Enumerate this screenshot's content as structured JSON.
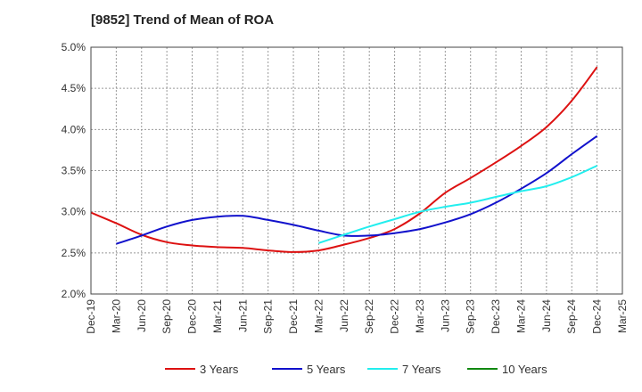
{
  "chart_data": {
    "type": "line",
    "title": "[9852]  Trend of Mean of ROA",
    "xlabel": "",
    "ylabel": "",
    "ylim": [
      2.0,
      5.0
    ],
    "yticks": [
      "2.0%",
      "2.5%",
      "3.0%",
      "3.5%",
      "4.0%",
      "4.5%",
      "5.0%"
    ],
    "x_ticks": [
      "Dec-19",
      "Mar-20",
      "Jun-20",
      "Sep-20",
      "Dec-20",
      "Mar-21",
      "Jun-21",
      "Sep-21",
      "Dec-21",
      "Mar-22",
      "Jun-22",
      "Sep-22",
      "Dec-22",
      "Mar-23",
      "Jun-23",
      "Sep-23",
      "Dec-23",
      "Mar-24",
      "Jun-24",
      "Sep-24",
      "Dec-24",
      "Mar-25"
    ],
    "grid": true,
    "legend_position": "bottom",
    "series": [
      {
        "name": "3 Years",
        "color": "#dd1111",
        "values": [
          2.99,
          2.86,
          2.72,
          2.63,
          2.59,
          2.57,
          2.56,
          2.53,
          2.51,
          2.53,
          2.6,
          2.68,
          2.79,
          2.98,
          3.23,
          3.41,
          3.6,
          3.8,
          4.03,
          4.35,
          4.76
        ]
      },
      {
        "name": "5 Years",
        "color": "#1111cc",
        "values": [
          null,
          2.61,
          2.71,
          2.82,
          2.9,
          2.94,
          2.95,
          2.9,
          2.84,
          2.77,
          2.71,
          2.71,
          2.74,
          2.79,
          2.87,
          2.97,
          3.11,
          3.28,
          3.47,
          3.7,
          3.92
        ]
      },
      {
        "name": "7 Years",
        "color": "#22eeee",
        "values": [
          null,
          null,
          null,
          null,
          null,
          null,
          null,
          null,
          null,
          2.62,
          2.72,
          2.82,
          2.91,
          3.0,
          3.06,
          3.11,
          3.18,
          3.25,
          3.31,
          3.42,
          3.56
        ]
      },
      {
        "name": "10 Years",
        "color": "#118811",
        "values": [
          null,
          null,
          null,
          null,
          null,
          null,
          null,
          null,
          null,
          null,
          null,
          null,
          null,
          null,
          null,
          null,
          null,
          null,
          null,
          null,
          null
        ]
      }
    ]
  }
}
